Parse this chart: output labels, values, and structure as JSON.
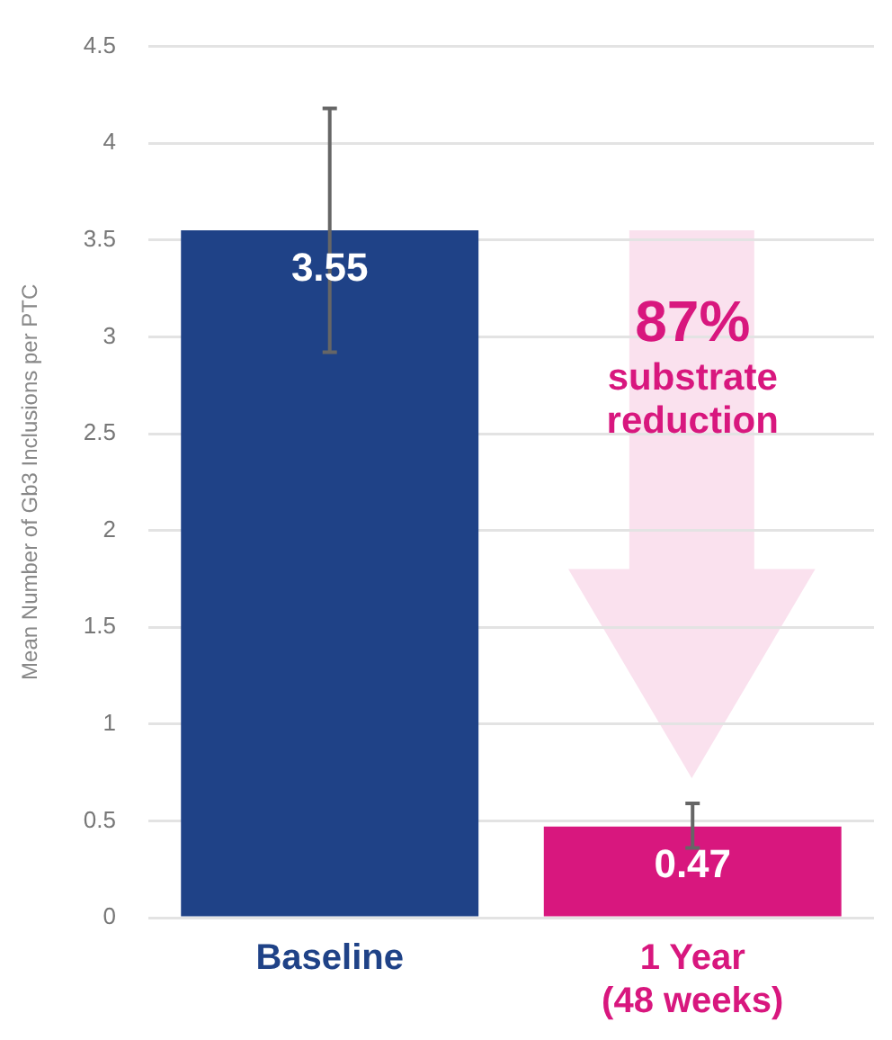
{
  "chart_data": {
    "type": "bar",
    "ylabel": "Mean Number of Gb3 Inclusions per PTC",
    "categories": [
      "Baseline",
      "1 Year\n(48 weeks)"
    ],
    "values": [
      3.55,
      0.47
    ],
    "colors": [
      "#1f4287",
      "#d8177e"
    ],
    "errors": [
      [
        2.92,
        4.18
      ],
      [
        0.36,
        0.59
      ]
    ],
    "data_labels": true,
    "ylim": [
      0,
      4.5
    ],
    "yticks": [
      0,
      0.5,
      1,
      1.5,
      2,
      2.5,
      3,
      3.5,
      4,
      4.5
    ],
    "grid": "y",
    "legend": false,
    "annotations": [
      "87%\nsubstrate\nreduction"
    ]
  }
}
